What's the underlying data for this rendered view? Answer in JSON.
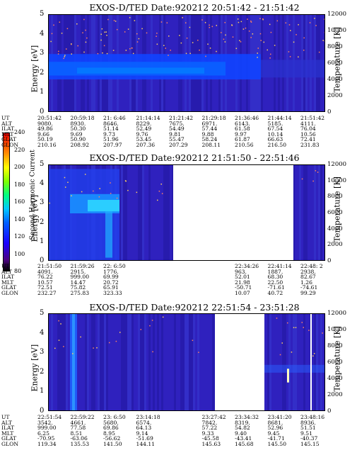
{
  "chart_data": [
    {
      "type": "heatmap",
      "title": "EXOS-D/TED   Date:920212  20:51:42 - 21:51:42",
      "ylabel": "Energy [eV]",
      "ylabel_right": "Temperature [K]",
      "ylim": [
        0,
        5
      ],
      "yticks": [
        "0",
        "1",
        "2",
        "3",
        "4",
        "5"
      ],
      "y2ticks": [
        "0",
        "2000",
        "4000",
        "6000",
        "8000",
        "10000",
        "12000"
      ],
      "ephemeris_labels": [
        "UT",
        "ALT",
        "ILAT",
        "MLT",
        "GLAT",
        "GLON"
      ],
      "ephemeris": [
        [
          "20:51:42",
          "9080.",
          "49.86",
          "9.66",
          "50.19",
          "210.16"
        ],
        [
          "20:59:18",
          "8930.",
          "50.30",
          "9.69",
          "50.90",
          "208.92"
        ],
        [
          "21: 6:46",
          "8646.",
          "51.14",
          "9.73",
          "51.96",
          "207.97"
        ],
        [
          "21:14:14",
          "8229.",
          "52.49",
          "9.76",
          "53.45",
          "207.36"
        ],
        [
          "21:21:42",
          "7675.",
          "54.49",
          "9.81",
          "55.47",
          "207.29"
        ],
        [
          "21:29:18",
          "6971.",
          "57.44",
          "9.88",
          "58.24",
          "208.11"
        ],
        [
          "21:36:46",
          "6143.",
          "61.58",
          "9.97",
          "61.87",
          "210.56"
        ],
        [
          "21:44:14",
          "5185.",
          "67.54",
          "10.14",
          "66.63",
          "216.50"
        ],
        [
          "21:51:42",
          "4111.",
          "76.04",
          "10.56",
          "72.41",
          "231.83"
        ]
      ]
    },
    {
      "type": "heatmap",
      "title": "EXOS-D/TED   Date:920212  21:51:50 - 22:51:46",
      "ylabel": "Energy [eV]",
      "ylabel_right": "Temperature [K]",
      "ylim": [
        0,
        5
      ],
      "yticks": [
        "0",
        "1",
        "2",
        "3",
        "4",
        "5"
      ],
      "y2ticks": [
        "0",
        "2000",
        "4000",
        "6000",
        "8000",
        "10000",
        "12000"
      ],
      "ephemeris_labels": [
        "UT",
        "ALT",
        "ILAT",
        "MLT",
        "GLAT",
        "GLON"
      ],
      "ephemeris": [
        [
          "21:51:50",
          "4091.",
          "76.22",
          "10.57",
          "72.51",
          "232.27"
        ],
        [
          "21:59:26",
          "2915.",
          "999.00",
          "14.47",
          "75.82",
          "275.83"
        ],
        [
          "22: 6:50",
          "1776.",
          "69.99",
          "20.72",
          "65.91",
          "323.33"
        ],
        [
          "",
          "",
          "",
          "",
          "",
          ""
        ],
        [
          "",
          "",
          "",
          "",
          "",
          ""
        ],
        [
          "",
          "",
          "",
          "",
          "",
          ""
        ],
        [
          "22:34:26",
          "963.",
          "52.01",
          "21.98",
          "-50.71",
          "10.07"
        ],
        [
          "22:41:14",
          "1887.",
          "68.30",
          "22.50",
          "-71.61",
          "40.72"
        ],
        [
          "22:48: 2",
          "2938.",
          "82.67",
          "1.26",
          "-74.61",
          "99.29"
        ]
      ]
    },
    {
      "type": "heatmap",
      "title": "EXOS-D/TED   Date:920212  22:51:54 - 23:51:28",
      "ylabel": "Energy [eV]",
      "ylabel_right": "Temperature [K]",
      "ylim": [
        0,
        5
      ],
      "yticks": [
        "0",
        "1",
        "2",
        "3",
        "4",
        "5"
      ],
      "y2ticks": [
        "0",
        "2000",
        "4000",
        "6000",
        "8000",
        "10000",
        "12000"
      ],
      "ephemeris_labels": [
        "UT",
        "ALT",
        "ILAT",
        "MLT",
        "GLAT",
        "GLON"
      ],
      "ephemeris": [
        [
          "22:51:54",
          "3542.",
          "999.00",
          "6.25",
          "-70.95",
          "119.34"
        ],
        [
          "22:59:22",
          "4661.",
          "77.58",
          "8.51",
          "-63.06",
          "135.53"
        ],
        [
          "23: 6:50",
          "5680.",
          "69.86",
          "8.95",
          "-56.62",
          "141.50"
        ],
        [
          "23:14:18",
          "6574.",
          "64.13",
          "9.14",
          "-51.69",
          "144.11"
        ],
        [
          "",
          "",
          "",
          "",
          "",
          ""
        ],
        [
          "23:27:42",
          "7842.",
          "57.22",
          "9.33",
          "-45.58",
          "145.63"
        ],
        [
          "23:34:32",
          "8319.",
          "54.82",
          "9.40",
          "-43.41",
          "145.68"
        ],
        [
          "23:41:20",
          "8681.",
          "52.96",
          "9.45",
          "-41.71",
          "145.50"
        ],
        [
          "23:48:16",
          "8936.",
          "51.51",
          "9.51",
          "-40.37",
          "145.15"
        ]
      ]
    }
  ],
  "colorbar": {
    "label": "Second Harmonic Current",
    "ticks": [
      "80",
      "100",
      "120",
      "140",
      "160",
      "180",
      "200",
      "220",
      "240"
    ],
    "colors": [
      "#000000",
      "#4b0082",
      "#1a00ff",
      "#0060ff",
      "#00c8ff",
      "#00ff80",
      "#7fff00",
      "#ffff00",
      "#ff9000",
      "#ff0000"
    ]
  }
}
